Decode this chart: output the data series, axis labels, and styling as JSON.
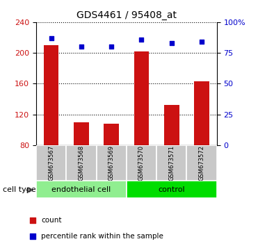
{
  "title": "GDS4461 / 95408_at",
  "samples": [
    "GSM673567",
    "GSM673568",
    "GSM673569",
    "GSM673570",
    "GSM673571",
    "GSM673572"
  ],
  "counts": [
    210,
    110,
    108,
    202,
    132,
    163
  ],
  "percentiles": [
    87,
    80,
    80,
    86,
    83,
    84
  ],
  "ylim_left": [
    80,
    240
  ],
  "ylim_right": [
    0,
    100
  ],
  "yticks_left": [
    80,
    120,
    160,
    200,
    240
  ],
  "yticks_right": [
    0,
    25,
    50,
    75,
    100
  ],
  "bar_color": "#cc1111",
  "dot_color": "#0000cc",
  "grid_color": "#000000",
  "cell_types": [
    {
      "label": "endothelial cell",
      "indices": [
        0,
        1,
        2
      ],
      "color": "#90ee90"
    },
    {
      "label": "control",
      "indices": [
        3,
        4,
        5
      ],
      "color": "#00dd00"
    }
  ],
  "cell_type_label": "cell type",
  "legend_count": "count",
  "legend_percentile": "percentile rank within the sample",
  "tick_bg_color": "#c8c8c8",
  "bar_width": 0.5
}
